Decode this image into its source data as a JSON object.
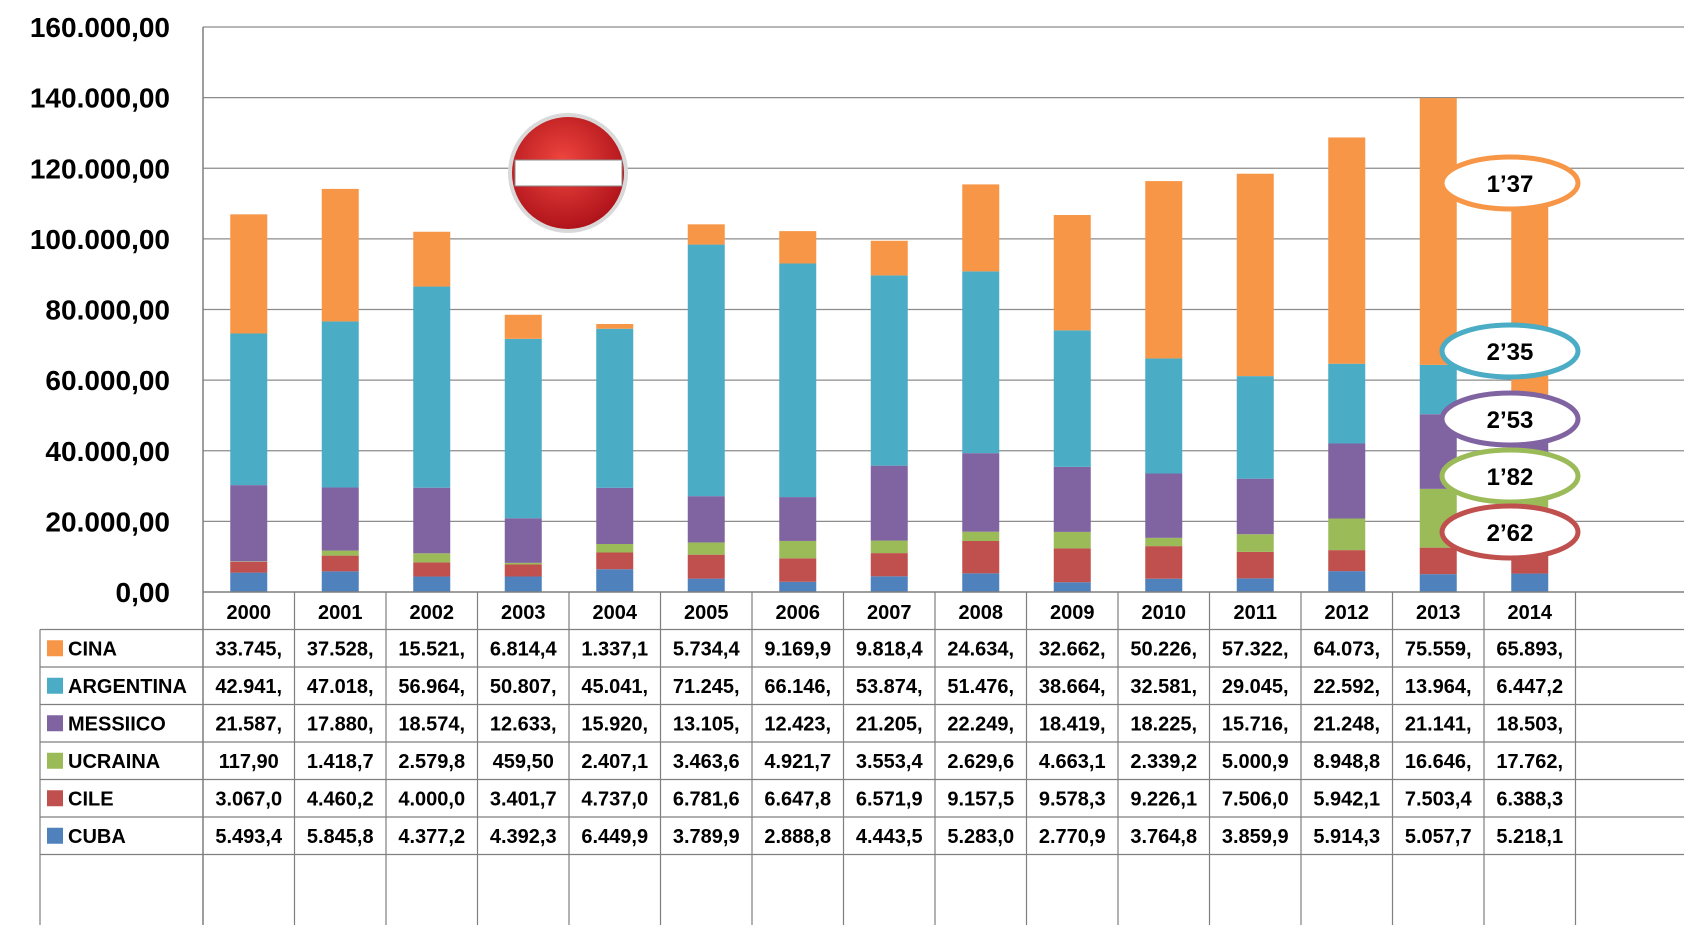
{
  "chart_data": {
    "type": "bar",
    "stacked": true,
    "categories": [
      "2000",
      "2001",
      "2002",
      "2003",
      "2004",
      "2005",
      "2006",
      "2007",
      "2008",
      "2009",
      "2010",
      "2011",
      "2012",
      "2013",
      "2014"
    ],
    "ylim": [
      0,
      160000
    ],
    "y_ticks": [
      "0,00",
      "20.000,00",
      "40.000,00",
      "60.000,00",
      "80.000,00",
      "100.000,00",
      "120.000,00",
      "140.000,00",
      "160.000,00"
    ],
    "grid": true,
    "legend": "data-table-left",
    "series": [
      {
        "name": "CUBA",
        "color": "#4f81bd",
        "values": [
          5493.4,
          5845.8,
          4377.2,
          4392.3,
          6449.9,
          3789.9,
          2888.8,
          4443.5,
          5283.0,
          2770.9,
          3764.8,
          3859.9,
          5914.3,
          5057.7,
          5218.1
        ],
        "labels": [
          "5.493,4",
          "5.845,8",
          "4.377,2",
          "4.392,3",
          "6.449,9",
          "3.789,9",
          "2.888,8",
          "4.443,5",
          "5.283,0",
          "2.770,9",
          "3.764,8",
          "3.859,9",
          "5.914,3",
          "5.057,7",
          "5.218,1"
        ]
      },
      {
        "name": "CILE",
        "color": "#c0504d",
        "values": [
          3067.0,
          4460.2,
          4000.0,
          3401.7,
          4737.0,
          6781.6,
          6647.8,
          6571.9,
          9157.5,
          9578.3,
          9226.1,
          7506.0,
          5942.1,
          7503.4,
          6388.3
        ],
        "labels": [
          "3.067,0",
          "4.460,2",
          "4.000,0",
          "3.401,7",
          "4.737,0",
          "6.781,6",
          "6.647,8",
          "6.571,9",
          "9.157,5",
          "9.578,3",
          "9.226,1",
          "7.506,0",
          "5.942,1",
          "7.503,4",
          "6.388,3"
        ]
      },
      {
        "name": "UCRAINA",
        "color": "#9bbb59",
        "values": [
          117.9,
          1418.7,
          2579.8,
          459.5,
          2407.1,
          3463.6,
          4921.7,
          3553.4,
          2629.6,
          4663.1,
          2339.2,
          5000.9,
          8948.8,
          16646,
          17762
        ],
        "labels": [
          "117,90",
          "1.418,7",
          "2.579,8",
          "459,50",
          "2.407,1",
          "3.463,6",
          "4.921,7",
          "3.553,4",
          "2.629,6",
          "4.663,1",
          "2.339,2",
          "5.000,9",
          "8.948,8",
          "16.646,",
          "17.762,"
        ]
      },
      {
        "name": "MESSIICO",
        "color": "#8064a2",
        "values": [
          21587,
          17880,
          18574,
          12633,
          15920,
          13105,
          12423,
          21205,
          22249,
          18419,
          18225,
          15716,
          21248,
          21141,
          18503
        ],
        "labels": [
          "21.587,",
          "17.880,",
          "18.574,",
          "12.633,",
          "15.920,",
          "13.105,",
          "12.423,",
          "21.205,",
          "22.249,",
          "18.419,",
          "18.225,",
          "15.716,",
          "21.248,",
          "21.141,",
          "18.503,"
        ]
      },
      {
        "name": "ARGENTINA",
        "color": "#4bacc6",
        "values": [
          42941,
          47018,
          56964,
          50807,
          45041,
          71245,
          66146,
          53874,
          51476,
          38664,
          32581,
          29045,
          22592,
          13964,
          6447.2
        ],
        "labels": [
          "42.941,",
          "47.018,",
          "56.964,",
          "50.807,",
          "45.041,",
          "71.245,",
          "66.146,",
          "53.874,",
          "51.476,",
          "38.664,",
          "32.581,",
          "29.045,",
          "22.592,",
          "13.964,",
          "6.447,2"
        ]
      },
      {
        "name": "CINA",
        "color": "#f79646",
        "values": [
          33745,
          37528,
          15521,
          6814.4,
          1337.1,
          5734.4,
          9169.9,
          9818.4,
          24634,
          32662,
          50226,
          57322,
          64073,
          75559,
          65893
        ],
        "labels": [
          "33.745,",
          "37.528,",
          "15.521,",
          "6.814,4",
          "1.337,1",
          "5.734,4",
          "9.169,9",
          "9.818,4",
          "24.634,",
          "32.662,",
          "50.226,",
          "57.322,",
          "64.073,",
          "75.559,",
          "65.893,"
        ]
      }
    ],
    "table_row_order": [
      "CINA",
      "ARGENTINA",
      "MESSIICO",
      "UCRAINA",
      "CILE",
      "CUBA"
    ],
    "annotations": [
      {
        "text": "1’37",
        "color": "#f79646"
      },
      {
        "text": "2’35",
        "color": "#4bacc6"
      },
      {
        "text": "2’53",
        "color": "#8064a2"
      },
      {
        "text": "1’82",
        "color": "#9bbb59"
      },
      {
        "text": "2’62",
        "color": "#c0504d"
      }
    ],
    "icons": [
      {
        "name": "no-entry-sign-icon"
      }
    ]
  }
}
